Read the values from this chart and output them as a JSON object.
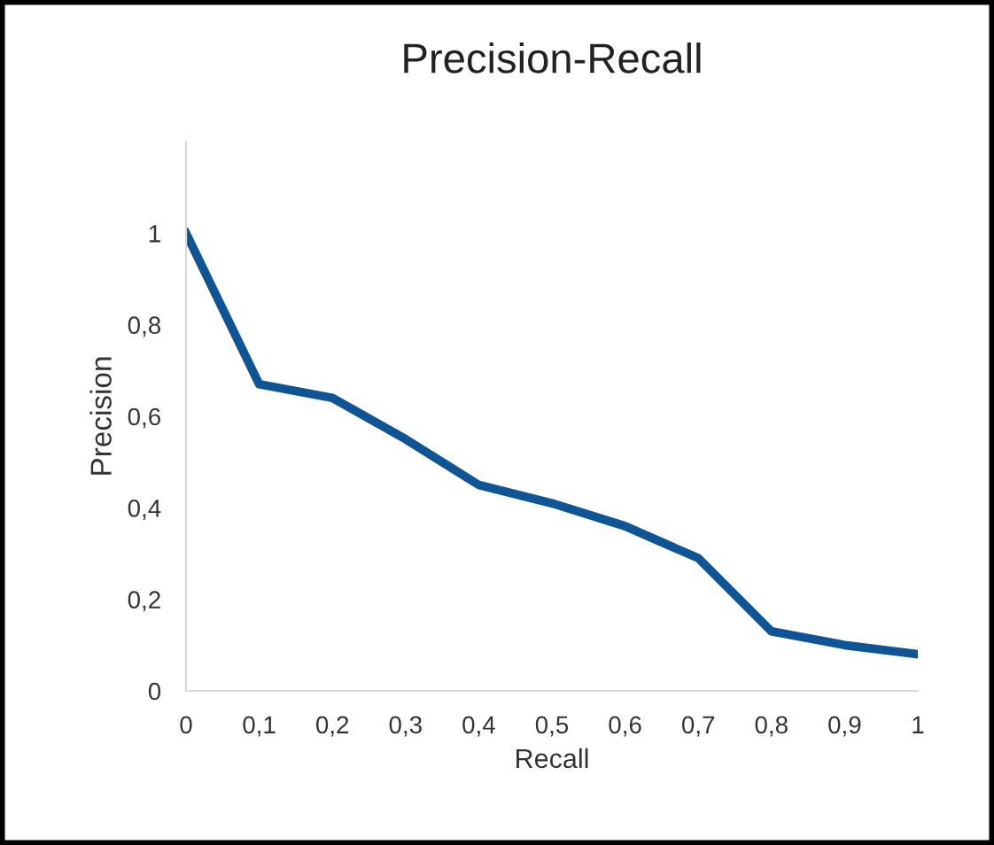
{
  "chart_data": {
    "type": "line",
    "title": "Precision-Recall",
    "xlabel": "Recall",
    "ylabel": "Precision",
    "x": [
      0,
      0.1,
      0.2,
      0.3,
      0.4,
      0.5,
      0.6,
      0.7,
      0.8,
      0.9,
      1
    ],
    "series": [
      {
        "color": "#0f5596",
        "values": [
          1.0,
          0.67,
          0.64,
          0.55,
          0.45,
          0.41,
          0.36,
          0.29,
          0.13,
          0.1,
          0.08
        ]
      }
    ],
    "xlim": [
      0,
      1
    ],
    "ylim": [
      0,
      1.2
    ],
    "xticks": [
      0,
      {
        "value": 0.1,
        "label": "0,1"
      },
      {
        "value": 0.2,
        "label": "0,2"
      },
      {
        "value": 0.3,
        "label": "0,3"
      },
      {
        "value": 0.4,
        "label": "0,4"
      },
      {
        "value": 0.5,
        "label": "0,5"
      },
      {
        "value": 0.6,
        "label": "0,6"
      },
      {
        "value": 0.7,
        "label": "0,7"
      },
      {
        "value": 0.8,
        "label": "0,8"
      },
      {
        "value": 0.9,
        "label": "0,9"
      },
      1
    ],
    "yticks": [
      0,
      {
        "value": 0.2,
        "label": "0,2"
      },
      {
        "value": 0.4,
        "label": "0,4"
      },
      {
        "value": 0.6,
        "label": "0,6"
      },
      {
        "value": 0.8,
        "label": "0,8"
      },
      1
    ],
    "grid": false,
    "legend": false,
    "marker": "none",
    "line_style": "solid"
  }
}
